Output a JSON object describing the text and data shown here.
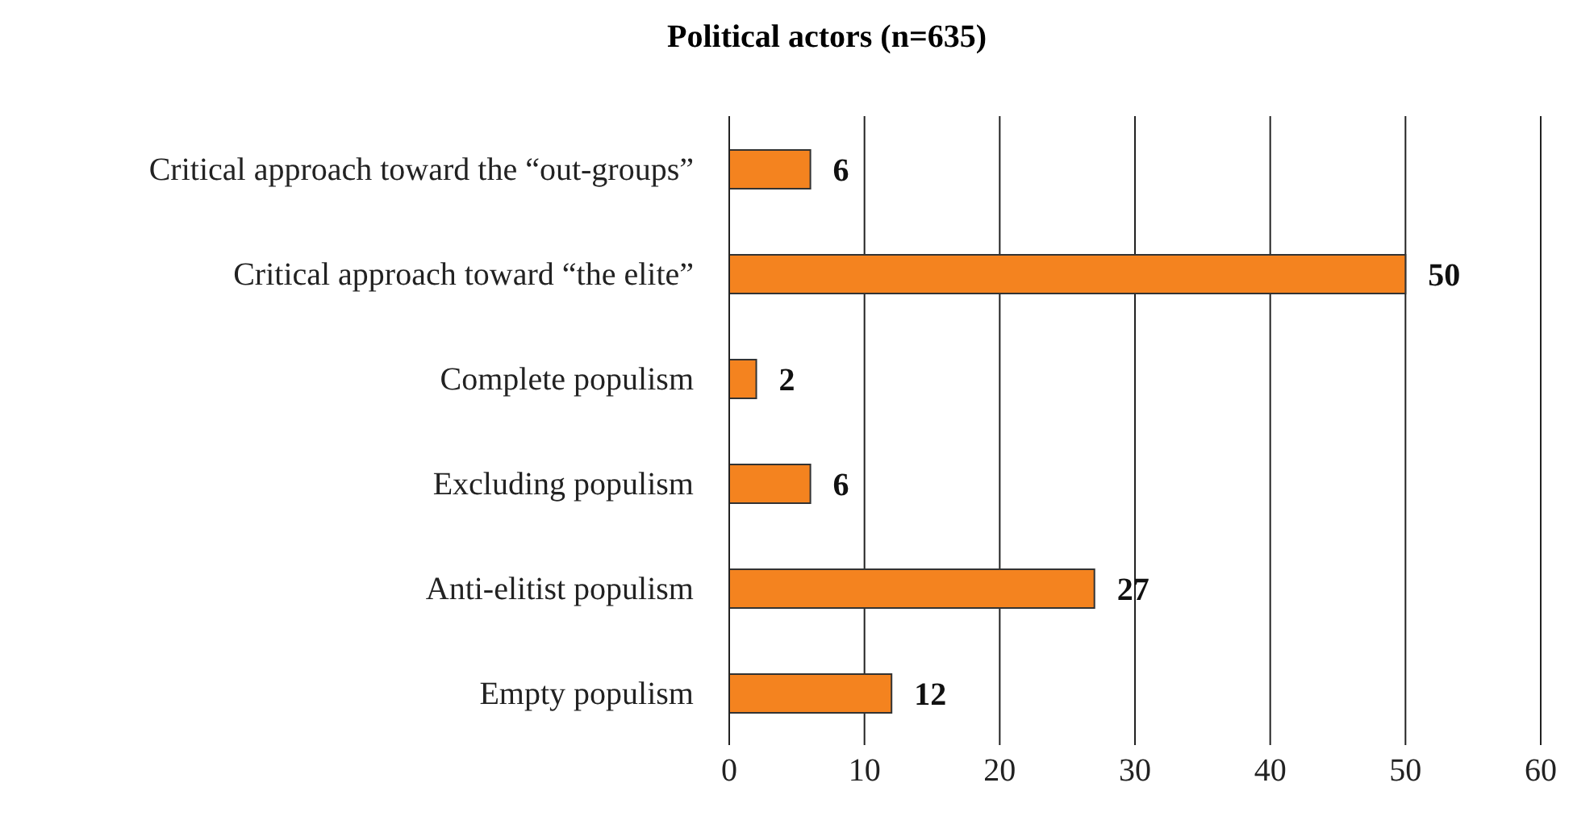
{
  "chart_data": {
    "type": "bar",
    "orientation": "horizontal",
    "title": "Political actors (n=635)",
    "categories": [
      "Critical approach toward the “out-groups”",
      "Critical approach toward “the elite”",
      "Complete populism",
      "Excluding populism",
      "Anti-elitist populism",
      "Empty populism"
    ],
    "values": [
      6,
      50,
      2,
      6,
      27,
      12
    ],
    "color": "#f4831f",
    "xlim": [
      0,
      60
    ],
    "xticks": [
      0,
      10,
      20,
      30,
      40,
      50,
      60
    ],
    "grid": "x",
    "data_labels": true
  }
}
